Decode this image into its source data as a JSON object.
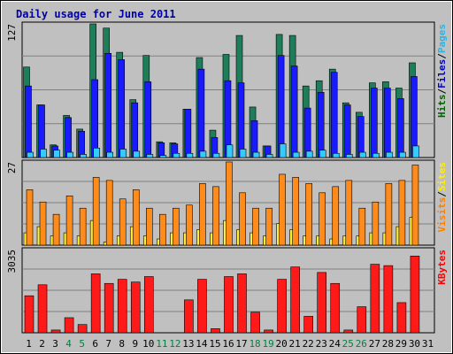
{
  "chart_data": {
    "type": "bar",
    "title": "Daily usage for June 2011",
    "days": [
      "1",
      "2",
      "3",
      "4",
      "5",
      "6",
      "7",
      "8",
      "9",
      "10",
      "11",
      "12",
      "13",
      "14",
      "15",
      "16",
      "17",
      "18",
      "19",
      "20",
      "21",
      "22",
      "23",
      "24",
      "25",
      "26",
      "27",
      "28",
      "29",
      "30",
      "31"
    ],
    "weekend_days": [
      "4",
      "5",
      "11",
      "12",
      "18",
      "19",
      "25",
      "26"
    ],
    "panels": [
      {
        "name": "hits-files-pages",
        "ymax_label": "127",
        "ymax": 127,
        "right_labels": [
          {
            "text": "Hits",
            "color": "#006400"
          },
          {
            "text": "/",
            "color": "#000000"
          },
          {
            "text": "Files",
            "color": "#0000cc"
          },
          {
            "text": "/",
            "color": "#000000"
          },
          {
            "text": "Pages",
            "color": "#29b6e6"
          }
        ],
        "series": [
          {
            "key": "hits",
            "color": "#1e7e5a",
            "values": [
              86,
              50,
              12,
              40,
              27,
              127,
              123,
              100,
              55,
              97,
              15,
              14,
              46,
              95,
              26,
              98,
              116,
              48,
              11,
              117,
              116,
              68,
              73,
              84,
              52,
              43,
              71,
              72,
              66,
              90,
              0
            ]
          },
          {
            "key": "files",
            "color": "#1a1aff",
            "values": [
              68,
              50,
              11,
              38,
              25,
              74,
              99,
              93,
              52,
              72,
              14,
              13,
              46,
              84,
              19,
              73,
              71,
              35,
              11,
              97,
              87,
              47,
              62,
              81,
              50,
              39,
              66,
              66,
              56,
              77,
              0
            ]
          },
          {
            "key": "pages",
            "color": "#33ccff",
            "values": [
              5,
              8,
              7,
              5,
              3,
              9,
              5,
              8,
              6,
              3,
              2,
              4,
              4,
              6,
              4,
              12,
              8,
              5,
              3,
              13,
              5,
              6,
              7,
              4,
              3,
              5,
              4,
              5,
              5,
              11,
              0
            ]
          }
        ]
      },
      {
        "name": "visits-sites",
        "ymax_label": "27",
        "ymax": 27,
        "right_labels": [
          {
            "text": "Visits",
            "color": "#ff8000"
          },
          {
            "text": "/",
            "color": "#000000"
          },
          {
            "text": "Sites",
            "color": "#ffee00"
          }
        ],
        "series": [
          {
            "key": "visits",
            "color": "#ff8c1a",
            "values": [
              18,
              14,
              10,
              16,
              12,
              22,
              21,
              15,
              18,
              12,
              10,
              12,
              13,
              20,
              19,
              27,
              17,
              12,
              12,
              23,
              22,
              20,
              17,
              19,
              21,
              12,
              14,
              20,
              21,
              26,
              0
            ]
          },
          {
            "key": "sites",
            "color": "#ffee33",
            "values": [
              4,
              6,
              3,
              4,
              3,
              8,
              1,
              3,
              6,
              3,
              2,
              4,
              4,
              5,
              4,
              8,
              5,
              4,
              3,
              7,
              5,
              3,
              3,
              2,
              3,
              3,
              4,
              4,
              6,
              9,
              0
            ]
          }
        ]
      },
      {
        "name": "kbytes",
        "ymax_label": "3035",
        "ymax": 3035,
        "right_labels": [
          {
            "text": "KBytes",
            "color": "#ff0000"
          }
        ],
        "series": [
          {
            "key": "kbytes",
            "color": "#ff1a1a",
            "values": [
              1350,
              1750,
              100,
              550,
              300,
              2150,
              1800,
              1950,
              1850,
              2050,
              0,
              0,
              1200,
              1950,
              150,
              2050,
              2150,
              750,
              100,
              1950,
              2400,
              600,
              2200,
              1800,
              100,
              950,
              2500,
              2450,
              1100,
              2800,
              0
            ]
          }
        ]
      }
    ]
  }
}
